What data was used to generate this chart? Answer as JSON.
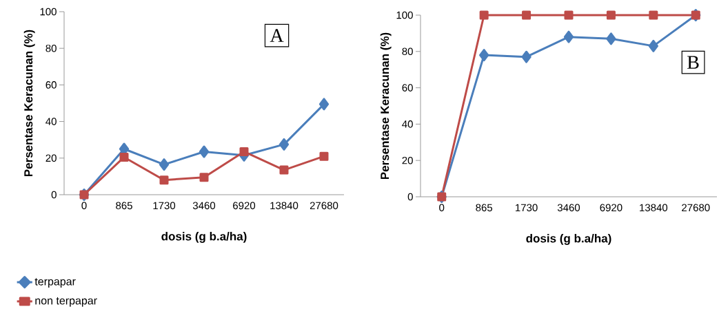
{
  "chart_data": [
    {
      "type": "line",
      "categories": [
        "0",
        "865",
        "1730",
        "3460",
        "6920",
        "13840",
        "27680"
      ],
      "xlabel": "dosis (g b.a/ha)",
      "ylabel": "Persentase Keracunan (%)",
      "ylim": [
        0,
        100
      ],
      "yticks": [
        0,
        20,
        40,
        60,
        80,
        100
      ],
      "annotations": [
        "A"
      ],
      "legend": "bottom",
      "grid": false,
      "series": [
        {
          "name": "terpapar",
          "color": "#4a7ebb",
          "marker": "diamond",
          "values": [
            0,
            25,
            16.5,
            23.5,
            21.5,
            27.5,
            49.5
          ]
        },
        {
          "name": "non terpapar",
          "color": "#be4b48",
          "marker": "square",
          "values": [
            0,
            20.5,
            8,
            9.5,
            23.5,
            13.5,
            21
          ]
        }
      ]
    },
    {
      "type": "line",
      "categories": [
        "0",
        "865",
        "1730",
        "3460",
        "6920",
        "13840",
        "27680"
      ],
      "xlabel": "dosis (g b.a/ha)",
      "ylabel": "Persentase Keracunan (%)",
      "ylim": [
        0,
        100
      ],
      "yticks": [
        0,
        20,
        40,
        60,
        80,
        100
      ],
      "annotations": [
        "B"
      ],
      "grid": false,
      "series": [
        {
          "color": "#4a7ebb",
          "marker": "diamond",
          "values": [
            0,
            78,
            77,
            88,
            87,
            83,
            100
          ]
        },
        {
          "color": "#be4b48",
          "marker": "square",
          "values": [
            0,
            100,
            100,
            100,
            100,
            100,
            100
          ]
        }
      ]
    }
  ]
}
